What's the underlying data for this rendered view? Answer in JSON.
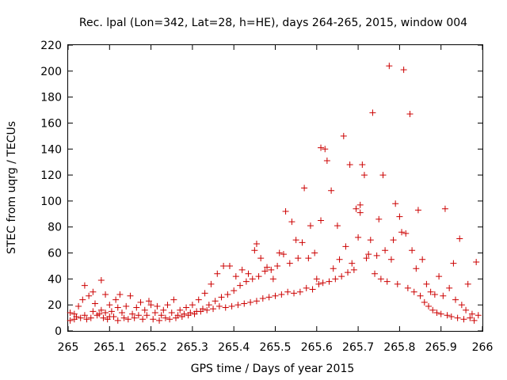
{
  "chart_data": {
    "type": "scatter",
    "title": "Rec. lpal (Lon=342, Lat=28, h=HE), days 264-265, 2015, window 004",
    "xlabel": "GPS time / Days of year 2015",
    "ylabel": "STEC from uqrg / TECUs",
    "xlim": [
      265,
      266
    ],
    "ylim": [
      0,
      220
    ],
    "xticks": [
      "265",
      "265.1",
      "265.2",
      "265.3",
      "265.4",
      "265.5",
      "265.6",
      "265.7",
      "265.8",
      "265.9",
      "266"
    ],
    "yticks": [
      "0",
      "20",
      "40",
      "60",
      "80",
      "100",
      "120",
      "140",
      "160",
      "180",
      "200",
      "220"
    ],
    "marker": "+",
    "grid": false,
    "legend": "none",
    "series": [
      {
        "color": "#cc0000",
        "points": [
          [
            265.005,
            8
          ],
          [
            265.005,
            14
          ],
          [
            265.015,
            9
          ],
          [
            265.015,
            13
          ],
          [
            265.02,
            11
          ],
          [
            265.025,
            19
          ],
          [
            265.03,
            10
          ],
          [
            265.035,
            24
          ],
          [
            265.04,
            35
          ],
          [
            265.04,
            12
          ],
          [
            265.045,
            9
          ],
          [
            265.05,
            27
          ],
          [
            265.055,
            10
          ],
          [
            265.06,
            15
          ],
          [
            265.06,
            30
          ],
          [
            265.065,
            21
          ],
          [
            265.07,
            12
          ],
          [
            265.075,
            13
          ],
          [
            265.08,
            39
          ],
          [
            265.08,
            16
          ],
          [
            265.085,
            10
          ],
          [
            265.09,
            14
          ],
          [
            265.09,
            28
          ],
          [
            265.095,
            9
          ],
          [
            265.1,
            11
          ],
          [
            265.1,
            20
          ],
          [
            265.105,
            15
          ],
          [
            265.11,
            11
          ],
          [
            265.115,
            24
          ],
          [
            265.12,
            18
          ],
          [
            265.12,
            8
          ],
          [
            265.125,
            28
          ],
          [
            265.13,
            14
          ],
          [
            265.135,
            10
          ],
          [
            265.14,
            19
          ],
          [
            265.145,
            9
          ],
          [
            265.15,
            27
          ],
          [
            265.155,
            13
          ],
          [
            265.16,
            10
          ],
          [
            265.165,
            18
          ],
          [
            265.17,
            12
          ],
          [
            265.175,
            22
          ],
          [
            265.18,
            9
          ],
          [
            265.185,
            16
          ],
          [
            265.19,
            12
          ],
          [
            265.195,
            23
          ],
          [
            265.2,
            20
          ],
          [
            265.205,
            9
          ],
          [
            265.21,
            14
          ],
          [
            265.215,
            19
          ],
          [
            265.22,
            8
          ],
          [
            265.225,
            12
          ],
          [
            265.23,
            16
          ],
          [
            265.235,
            10
          ],
          [
            265.24,
            20
          ],
          [
            265.245,
            9
          ],
          [
            265.25,
            14
          ],
          [
            265.255,
            24
          ],
          [
            265.26,
            10
          ],
          [
            265.265,
            12
          ],
          [
            265.27,
            16
          ],
          [
            265.275,
            11
          ],
          [
            265.28,
            13
          ],
          [
            265.285,
            18
          ],
          [
            265.29,
            12
          ],
          [
            265.295,
            14
          ],
          [
            265.3,
            20
          ],
          [
            265.305,
            13
          ],
          [
            265.31,
            15
          ],
          [
            265.315,
            24
          ],
          [
            265.32,
            15
          ],
          [
            265.325,
            17
          ],
          [
            265.33,
            29
          ],
          [
            265.335,
            16
          ],
          [
            265.34,
            20
          ],
          [
            265.345,
            36
          ],
          [
            265.35,
            17
          ],
          [
            265.355,
            23
          ],
          [
            265.36,
            44
          ],
          [
            265.365,
            19
          ],
          [
            265.37,
            26
          ],
          [
            265.375,
            50
          ],
          [
            265.38,
            18
          ],
          [
            265.385,
            28
          ],
          [
            265.39,
            50
          ],
          [
            265.395,
            19
          ],
          [
            265.4,
            31
          ],
          [
            265.405,
            42
          ],
          [
            265.41,
            20
          ],
          [
            265.415,
            35
          ],
          [
            265.42,
            47
          ],
          [
            265.425,
            21
          ],
          [
            265.43,
            38
          ],
          [
            265.435,
            44
          ],
          [
            265.44,
            22
          ],
          [
            265.445,
            40
          ],
          [
            265.45,
            62
          ],
          [
            265.455,
            67
          ],
          [
            265.455,
            23
          ],
          [
            265.46,
            42
          ],
          [
            265.465,
            56
          ],
          [
            265.47,
            25
          ],
          [
            265.475,
            46
          ],
          [
            265.48,
            49
          ],
          [
            265.485,
            26
          ],
          [
            265.49,
            47
          ],
          [
            265.495,
            40
          ],
          [
            265.5,
            27
          ],
          [
            265.505,
            50
          ],
          [
            265.51,
            60
          ],
          [
            265.515,
            28
          ],
          [
            265.52,
            59
          ],
          [
            265.525,
            92
          ],
          [
            265.53,
            30
          ],
          [
            265.535,
            52
          ],
          [
            265.54,
            84
          ],
          [
            265.545,
            29
          ],
          [
            265.55,
            70
          ],
          [
            265.555,
            56
          ],
          [
            265.56,
            30
          ],
          [
            265.565,
            68
          ],
          [
            265.57,
            110
          ],
          [
            265.575,
            33
          ],
          [
            265.58,
            56
          ],
          [
            265.585,
            81
          ],
          [
            265.59,
            32
          ],
          [
            265.595,
            60
          ],
          [
            265.6,
            40
          ],
          [
            265.605,
            36
          ],
          [
            265.61,
            85
          ],
          [
            265.61,
            141
          ],
          [
            265.615,
            37
          ],
          [
            265.62,
            140
          ],
          [
            265.625,
            131
          ],
          [
            265.63,
            38
          ],
          [
            265.635,
            108
          ],
          [
            265.64,
            48
          ],
          [
            265.645,
            40
          ],
          [
            265.65,
            81
          ],
          [
            265.655,
            55
          ],
          [
            265.66,
            42
          ],
          [
            265.665,
            150
          ],
          [
            265.67,
            65
          ],
          [
            265.675,
            45
          ],
          [
            265.68,
            128
          ],
          [
            265.685,
            52
          ],
          [
            265.69,
            47
          ],
          [
            265.695,
            94
          ],
          [
            265.7,
            72
          ],
          [
            265.705,
            91
          ],
          [
            265.705,
            97
          ],
          [
            265.71,
            128
          ],
          [
            265.715,
            120
          ],
          [
            265.72,
            56
          ],
          [
            265.725,
            59
          ],
          [
            265.73,
            70
          ],
          [
            265.735,
            168
          ],
          [
            265.74,
            44
          ],
          [
            265.745,
            58
          ],
          [
            265.75,
            86
          ],
          [
            265.755,
            40
          ],
          [
            265.76,
            120
          ],
          [
            265.765,
            62
          ],
          [
            265.77,
            38
          ],
          [
            265.775,
            204
          ],
          [
            265.78,
            55
          ],
          [
            265.785,
            70
          ],
          [
            265.79,
            98
          ],
          [
            265.795,
            36
          ],
          [
            265.8,
            88
          ],
          [
            265.805,
            76
          ],
          [
            265.81,
            201
          ],
          [
            265.815,
            75
          ],
          [
            265.82,
            33
          ],
          [
            265.825,
            167
          ],
          [
            265.83,
            62
          ],
          [
            265.835,
            30
          ],
          [
            265.84,
            48
          ],
          [
            265.845,
            93
          ],
          [
            265.85,
            27
          ],
          [
            265.855,
            55
          ],
          [
            265.86,
            22
          ],
          [
            265.865,
            36
          ],
          [
            265.87,
            19
          ],
          [
            265.875,
            30
          ],
          [
            265.88,
            16
          ],
          [
            265.885,
            28
          ],
          [
            265.89,
            14
          ],
          [
            265.895,
            42
          ],
          [
            265.9,
            13
          ],
          [
            265.905,
            27
          ],
          [
            265.91,
            94
          ],
          [
            265.915,
            12
          ],
          [
            265.92,
            33
          ],
          [
            265.925,
            11
          ],
          [
            265.93,
            52
          ],
          [
            265.935,
            24
          ],
          [
            265.94,
            10
          ],
          [
            265.945,
            71
          ],
          [
            265.95,
            20
          ],
          [
            265.955,
            9
          ],
          [
            265.96,
            16
          ],
          [
            265.965,
            36
          ],
          [
            265.97,
            10
          ],
          [
            265.975,
            13
          ],
          [
            265.98,
            8
          ],
          [
            265.985,
            53
          ],
          [
            265.99,
            12
          ]
        ]
      }
    ]
  }
}
